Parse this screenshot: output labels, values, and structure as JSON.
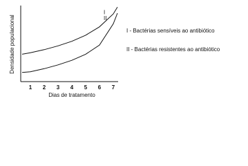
{
  "chart_data": {
    "type": "line",
    "x": [
      0.4,
      1,
      2,
      3,
      4,
      5,
      6,
      7,
      7.3
    ],
    "series": [
      {
        "name": "I",
        "color": "#111111",
        "values": [
          3.6,
          3.8,
          4.2,
          4.7,
          5.3,
          6.1,
          7.2,
          8.9,
          9.8
        ]
      },
      {
        "name": "II",
        "color": "#111111",
        "values": [
          1.2,
          1.3,
          1.7,
          2.2,
          2.8,
          3.6,
          4.8,
          7.6,
          9.0
        ]
      }
    ],
    "legend": [
      "I - Bactérias sensíveis ao antibiótico",
      "II - Bactérias resistentes ao antibiótico"
    ],
    "x_label": "Dias de tratamento",
    "y_label": "Densidade populacional",
    "xlim": [
      0.3,
      7.3
    ],
    "xticks": [
      1,
      2,
      3,
      4,
      5,
      6,
      7
    ],
    "ylim": [
      0,
      10
    ],
    "grid": false
  }
}
